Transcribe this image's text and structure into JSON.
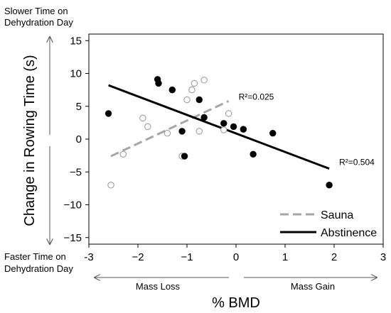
{
  "chart_data": {
    "type": "scatter",
    "xlabel": "% BMD",
    "ylabel": "Change in Rowing Time (s)",
    "xlim": [
      -3,
      3
    ],
    "ylim": [
      -16,
      16
    ],
    "x_ticks": [
      -3,
      -2,
      -1,
      0,
      1,
      2,
      3
    ],
    "x_tick_labels": [
      "-3",
      "−2",
      "−1",
      "0",
      "1",
      "2",
      "3"
    ],
    "y_ticks": [
      -15,
      -10,
      -5,
      0,
      5,
      10,
      15
    ],
    "y_tick_labels": [
      "−15",
      "−10",
      "−5",
      "0",
      "5",
      "10",
      "15"
    ],
    "grid": false,
    "legend_position": "bottom-right",
    "annotations": {
      "y_top": "Slower Time on Dehydration Day",
      "y_top_line1": "Slower Time on",
      "y_top_line2": "Dehydration Day",
      "y_bottom": "Faster Time on Dehydration Day",
      "y_bottom_line1": "Faster Time on",
      "y_bottom_line2": "Dehydration Day",
      "x_left": "Mass Loss",
      "x_right": "Mass Gain"
    },
    "series": [
      {
        "name": "Sauna",
        "marker": "open-circle",
        "color": "#9e9e9e",
        "line_style": "dashed",
        "line_color": "#a6a6a6",
        "r2_label": "R²=0.025",
        "fit": {
          "x": [
            -2.55,
            -0.15
          ],
          "y": [
            -2.6,
            5.8
          ]
        },
        "points": [
          {
            "x": -2.55,
            "y": -7.0
          },
          {
            "x": -2.3,
            "y": -2.3
          },
          {
            "x": -1.9,
            "y": 3.2
          },
          {
            "x": -1.8,
            "y": 1.9
          },
          {
            "x": -1.4,
            "y": 0.9
          },
          {
            "x": -1.1,
            "y": -2.6
          },
          {
            "x": -1.0,
            "y": 6.0
          },
          {
            "x": -0.85,
            "y": 8.5
          },
          {
            "x": -0.9,
            "y": 7.5
          },
          {
            "x": -0.75,
            "y": 1.2
          },
          {
            "x": -0.65,
            "y": 9.0
          },
          {
            "x": -0.25,
            "y": 1.4
          },
          {
            "x": -0.15,
            "y": 3.9
          }
        ]
      },
      {
        "name": "Abstinence",
        "marker": "filled-circle",
        "color": "#000000",
        "line_style": "solid",
        "line_color": "#000000",
        "r2_label": "R²=0.504",
        "fit": {
          "x": [
            -2.6,
            1.9
          ],
          "y": [
            8.2,
            -4.5
          ]
        },
        "points": [
          {
            "x": -2.6,
            "y": 3.9
          },
          {
            "x": -1.6,
            "y": 9.1
          },
          {
            "x": -1.58,
            "y": 8.5
          },
          {
            "x": -1.3,
            "y": 7.5
          },
          {
            "x": -1.1,
            "y": 1.2
          },
          {
            "x": -1.05,
            "y": -2.6
          },
          {
            "x": -0.75,
            "y": 6.0
          },
          {
            "x": -0.65,
            "y": 3.3
          },
          {
            "x": -0.25,
            "y": 2.4
          },
          {
            "x": -0.05,
            "y": 1.9
          },
          {
            "x": 0.15,
            "y": 1.5
          },
          {
            "x": 0.35,
            "y": -2.3
          },
          {
            "x": 0.75,
            "y": 0.9
          },
          {
            "x": 1.9,
            "y": -7.0
          }
        ]
      }
    ]
  }
}
